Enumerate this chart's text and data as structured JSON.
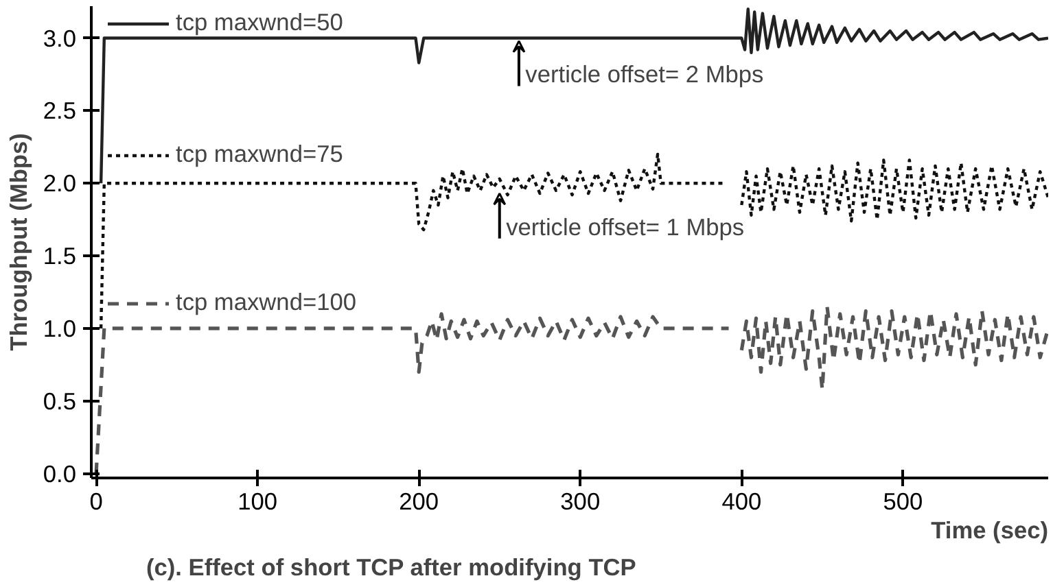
{
  "chart_data": {
    "type": "line",
    "title": "(c). Effect of short TCP after modifying TCP",
    "xlabel": "Time (sec)",
    "ylabel": "Throughput (Mbps)",
    "xlim": [
      -3,
      590
    ],
    "ylim": [
      -0.03,
      3.22
    ],
    "xticks": [
      0,
      100,
      200,
      300,
      400,
      500
    ],
    "yticks": [
      {
        "value": 0,
        "label": "0.0"
      },
      {
        "value": 0.5,
        "label": "0.5"
      },
      {
        "value": 1,
        "label": "1.0"
      },
      {
        "value": 1.5,
        "label": "1.5"
      },
      {
        "value": 2,
        "label": "2.0"
      },
      {
        "value": 2.5,
        "label": "2.5"
      },
      {
        "value": 3,
        "label": "3.0"
      }
    ],
    "grid": false,
    "legend": "top left",
    "annotations": [
      {
        "text": "verticle offset= 2 Mbps",
        "x": 262,
        "y": 3.0
      },
      {
        "text": "verticle offset= 1 Mbps",
        "x": 250,
        "y": 1.95
      }
    ],
    "series": [
      {
        "name": "tcp maxwnd=50",
        "color": "#222222",
        "line_style": "solid",
        "x": [
          3,
          5,
          198,
          200,
          203,
          400,
          402,
          404,
          406,
          408,
          410,
          413,
          416,
          420,
          423,
          427,
          430,
          434,
          437,
          441,
          444,
          448,
          451,
          456,
          459,
          464,
          468,
          473,
          477,
          482,
          486,
          492,
          496,
          502,
          506,
          512,
          516,
          522,
          526,
          532,
          536,
          544,
          548,
          556,
          560,
          568,
          572,
          580,
          584,
          590
        ],
        "values": [
          2.0,
          3.0,
          3.0,
          2.83,
          3.0,
          3.0,
          2.92,
          3.2,
          2.9,
          3.18,
          2.92,
          3.17,
          2.93,
          3.15,
          2.94,
          3.12,
          2.95,
          3.12,
          2.96,
          3.1,
          2.96,
          3.09,
          2.97,
          3.08,
          2.97,
          3.07,
          2.98,
          3.06,
          2.98,
          3.05,
          2.98,
          3.05,
          2.99,
          3.05,
          2.99,
          3.04,
          2.99,
          3.04,
          2.99,
          3.04,
          2.99,
          3.04,
          2.99,
          3.03,
          2.99,
          3.03,
          2.99,
          3.03,
          2.99,
          3.0
        ]
      },
      {
        "name": "tcp maxwnd=75",
        "color": "#111111",
        "line_style": "dotted",
        "x": [
          3,
          5,
          198,
          200,
          203,
          206,
          209,
          212,
          215,
          218,
          221,
          224,
          227,
          230,
          234,
          238,
          242,
          246,
          250,
          255,
          260,
          265,
          270,
          275,
          280,
          285,
          290,
          295,
          300,
          305,
          310,
          315,
          320,
          325,
          330,
          335,
          340,
          345,
          348,
          350,
          390,
          394,
          400,
          403,
          406,
          409,
          412,
          416,
          420,
          424,
          428,
          432,
          436,
          440,
          444,
          448,
          452,
          456,
          460,
          464,
          468,
          472,
          476,
          480,
          484,
          488,
          492,
          496,
          500,
          504,
          508,
          512,
          516,
          520,
          524,
          528,
          532,
          536,
          540,
          545,
          550,
          555,
          560,
          565,
          570,
          575,
          580,
          585,
          590
        ],
        "values": [
          1.0,
          2.0,
          2.0,
          1.72,
          1.68,
          1.8,
          1.95,
          1.85,
          2.05,
          1.9,
          2.08,
          1.95,
          2.1,
          1.93,
          2.05,
          1.95,
          2.06,
          1.97,
          2.03,
          1.92,
          2.05,
          1.95,
          2.06,
          1.93,
          2.07,
          1.95,
          2.06,
          1.92,
          2.08,
          1.93,
          2.07,
          1.95,
          2.08,
          1.88,
          2.09,
          1.95,
          2.1,
          1.96,
          2.2,
          2.0,
          2.0,
          null,
          1.85,
          2.08,
          1.78,
          2.05,
          1.8,
          2.1,
          1.82,
          2.08,
          1.85,
          2.12,
          1.8,
          2.06,
          1.85,
          2.1,
          1.78,
          2.12,
          1.82,
          2.08,
          1.74,
          2.14,
          1.8,
          2.1,
          1.75,
          2.16,
          1.78,
          2.1,
          1.8,
          2.16,
          1.76,
          2.1,
          1.78,
          2.12,
          1.8,
          2.1,
          1.82,
          2.14,
          1.8,
          2.1,
          1.82,
          2.12,
          1.82,
          2.1,
          1.84,
          2.1,
          1.82,
          2.08,
          1.9
        ]
      },
      {
        "name": "tcp maxwnd=100",
        "color": "#555555",
        "line_style": "dashed",
        "x": [
          0,
          5,
          198,
          200,
          202,
          205,
          208,
          211,
          214,
          217,
          220,
          224,
          228,
          232,
          236,
          240,
          245,
          250,
          255,
          260,
          265,
          270,
          275,
          280,
          285,
          290,
          295,
          300,
          305,
          310,
          315,
          320,
          325,
          330,
          335,
          340,
          345,
          350,
          392,
          395,
          400,
          403,
          406,
          409,
          412,
          415,
          418,
          421,
          424,
          428,
          432,
          436,
          440,
          444,
          448,
          450,
          453,
          457,
          461,
          465,
          469,
          473,
          477,
          481,
          485,
          489,
          493,
          497,
          501,
          505,
          509,
          513,
          517,
          521,
          525,
          529,
          533,
          537,
          541,
          545,
          549,
          553,
          557,
          561,
          565,
          569,
          573,
          577,
          581,
          585,
          590
        ],
        "values": [
          0.0,
          1.0,
          1.0,
          0.7,
          0.9,
          0.95,
          1.05,
          0.92,
          1.1,
          0.93,
          1.05,
          0.94,
          1.06,
          0.93,
          1.05,
          0.95,
          1.04,
          0.92,
          1.06,
          0.95,
          1.05,
          0.93,
          1.07,
          0.95,
          1.05,
          0.92,
          1.06,
          0.94,
          1.07,
          0.95,
          1.04,
          0.93,
          1.08,
          0.94,
          1.05,
          0.95,
          1.08,
          1.0,
          1.0,
          null,
          0.85,
          1.05,
          0.8,
          1.07,
          0.7,
          1.05,
          0.76,
          1.08,
          0.75,
          1.1,
          0.8,
          1.05,
          0.72,
          1.12,
          0.8,
          0.58,
          1.15,
          0.78,
          1.1,
          0.82,
          1.08,
          0.76,
          1.12,
          0.8,
          1.08,
          0.78,
          1.12,
          0.82,
          1.08,
          0.8,
          1.1,
          0.78,
          1.12,
          0.82,
          1.06,
          0.8,
          1.1,
          0.8,
          1.08,
          0.75,
          1.12,
          0.82,
          1.06,
          0.78,
          1.1,
          0.8,
          1.08,
          0.82,
          1.08,
          0.8,
          1.0
        ]
      }
    ]
  }
}
